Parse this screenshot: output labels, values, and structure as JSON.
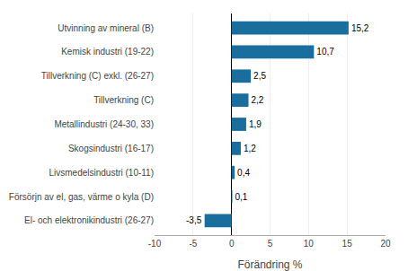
{
  "chart_data": {
    "type": "bar",
    "orientation": "horizontal",
    "categories": [
      "El- och elektronikindustri (26-27)",
      "Försörjn av el, gas, värme o kyla (D)",
      "Livsmedelsindustri (10-11)",
      "Skogsindustri (16-17)",
      "Metallindustri (24-30, 33)",
      "Tillverkning (C)",
      "Tillverkning (C) exkl. (26-27)",
      "Kemisk industri (19-22)",
      "Utvinning av mineral (B)"
    ],
    "values": [
      -3.5,
      0.1,
      0.4,
      1.2,
      1.9,
      2.2,
      2.5,
      10.7,
      15.2
    ],
    "value_labels": [
      "-3,5",
      "0,1",
      "0,4",
      "1,2",
      "1,9",
      "2,2",
      "2,5",
      "10,7",
      "15,2"
    ],
    "data_labels": true,
    "color": "#1a6e9e",
    "xlabel": "Förändring %",
    "xlim": [
      -10,
      20
    ],
    "xticks": [
      -10,
      -5,
      0,
      5,
      10,
      15,
      20
    ],
    "grid": true
  }
}
